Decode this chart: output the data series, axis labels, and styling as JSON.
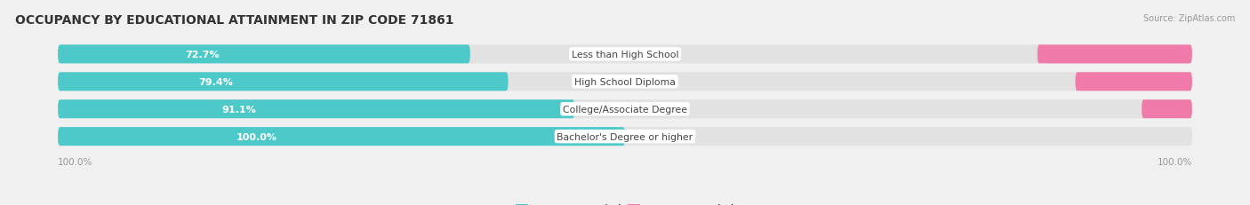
{
  "title": "OCCUPANCY BY EDUCATIONAL ATTAINMENT IN ZIP CODE 71861",
  "source": "Source: ZipAtlas.com",
  "categories": [
    "Less than High School",
    "High School Diploma",
    "College/Associate Degree",
    "Bachelor's Degree or higher"
  ],
  "owner_pct": [
    72.7,
    79.4,
    91.1,
    100.0
  ],
  "renter_pct": [
    27.3,
    20.6,
    8.9,
    0.0
  ],
  "owner_color": "#4ec9c9",
  "renter_color": "#f07aaa",
  "bg_color": "#f0f0f0",
  "bar_bg_color": "#e2e2e2",
  "bar_shadow_color": "#d0d0d0",
  "title_fontsize": 10,
  "label_fontsize": 8,
  "cat_fontsize": 7.8,
  "pct_fontsize": 8,
  "bar_height": 0.68,
  "figsize": [
    14.06,
    2.32
  ],
  "dpi": 100,
  "x_left_label": "100.0%",
  "x_right_label": "100.0%"
}
